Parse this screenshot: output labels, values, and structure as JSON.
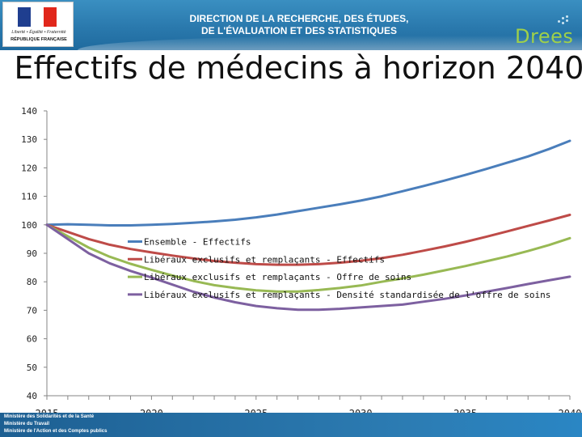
{
  "header": {
    "logo_motto": "Liberté • Égalité • Fraternité",
    "logo_name": "RÉPUBLIQUE FRANÇAISE",
    "title_line1": "DIRECTION DE LA RECHERCHE, DES ÉTUDES,",
    "title_line2": "DE L'ÉVALUATION ET DES STATISTIQUES",
    "brand": "Drees",
    "brand_color": "#9fd04a",
    "banner_color": "#2a79ad"
  },
  "page_title": "Effectifs de médecins à horizon 2040",
  "chart_data": {
    "type": "line",
    "title": "",
    "xlabel": "",
    "ylabel": "",
    "xlim": [
      2015,
      2040
    ],
    "ylim": [
      40,
      140
    ],
    "x_ticks": [
      2015,
      2020,
      2025,
      2030,
      2035,
      2040
    ],
    "y_ticks": [
      40,
      50,
      60,
      70,
      80,
      90,
      100,
      110,
      120,
      130,
      140
    ],
    "grid": false,
    "legend_position": "bottom-left",
    "x": [
      2015,
      2016,
      2017,
      2018,
      2019,
      2020,
      2021,
      2022,
      2023,
      2024,
      2025,
      2026,
      2027,
      2028,
      2029,
      2030,
      2031,
      2032,
      2033,
      2034,
      2035,
      2036,
      2037,
      2038,
      2039,
      2040
    ],
    "series": [
      {
        "name": "Ensemble - Effectifs",
        "color": "#4a7ebb",
        "values": [
          100,
          100.2,
          100,
          99.8,
          99.8,
          100,
          100.3,
          100.7,
          101.2,
          101.8,
          102.6,
          103.6,
          104.8,
          106,
          107.2,
          108.5,
          110,
          111.8,
          113.6,
          115.5,
          117.5,
          119.6,
          121.8,
          124,
          126.6,
          129.5
        ]
      },
      {
        "name": "Libéraux exclusifs et remplaçants - Effectifs",
        "color": "#be4b48",
        "values": [
          100,
          97.5,
          95,
          93,
          91.5,
          90.3,
          89.2,
          88.2,
          87.3,
          86.7,
          86.2,
          86,
          86,
          86.2,
          86.7,
          87.4,
          88.3,
          89.5,
          90.9,
          92.4,
          94,
          95.8,
          97.7,
          99.6,
          101.5,
          103.5
        ]
      },
      {
        "name": "Libéraux exclusifs et remplaçants - Offre de soins",
        "color": "#98b954",
        "values": [
          100,
          96,
          92,
          88.8,
          86.3,
          84.2,
          82.2,
          80.3,
          78.8,
          77.8,
          77,
          76.6,
          76.6,
          77.1,
          77.8,
          78.7,
          80,
          81.2,
          82.5,
          84,
          85.5,
          87.2,
          88.9,
          90.8,
          92.9,
          95.3
        ]
      },
      {
        "name": "Libéraux exclusifs et remplaçants - Densité standardisée de l'offre de soins",
        "color": "#7d60a0",
        "values": [
          100,
          95,
          90,
          86.5,
          83.8,
          81.5,
          79,
          76.5,
          74.5,
          72.8,
          71.5,
          70.7,
          70.2,
          70.2,
          70.5,
          71,
          71.5,
          72,
          73,
          74,
          75.2,
          76.5,
          77.8,
          79.2,
          80.5,
          81.8
        ]
      }
    ]
  },
  "footer": {
    "line1": "Ministère des Solidarités et de la Santé",
    "line2": "Ministère du Travail",
    "line3": "Ministère de l'Action et des Comptes publics"
  }
}
